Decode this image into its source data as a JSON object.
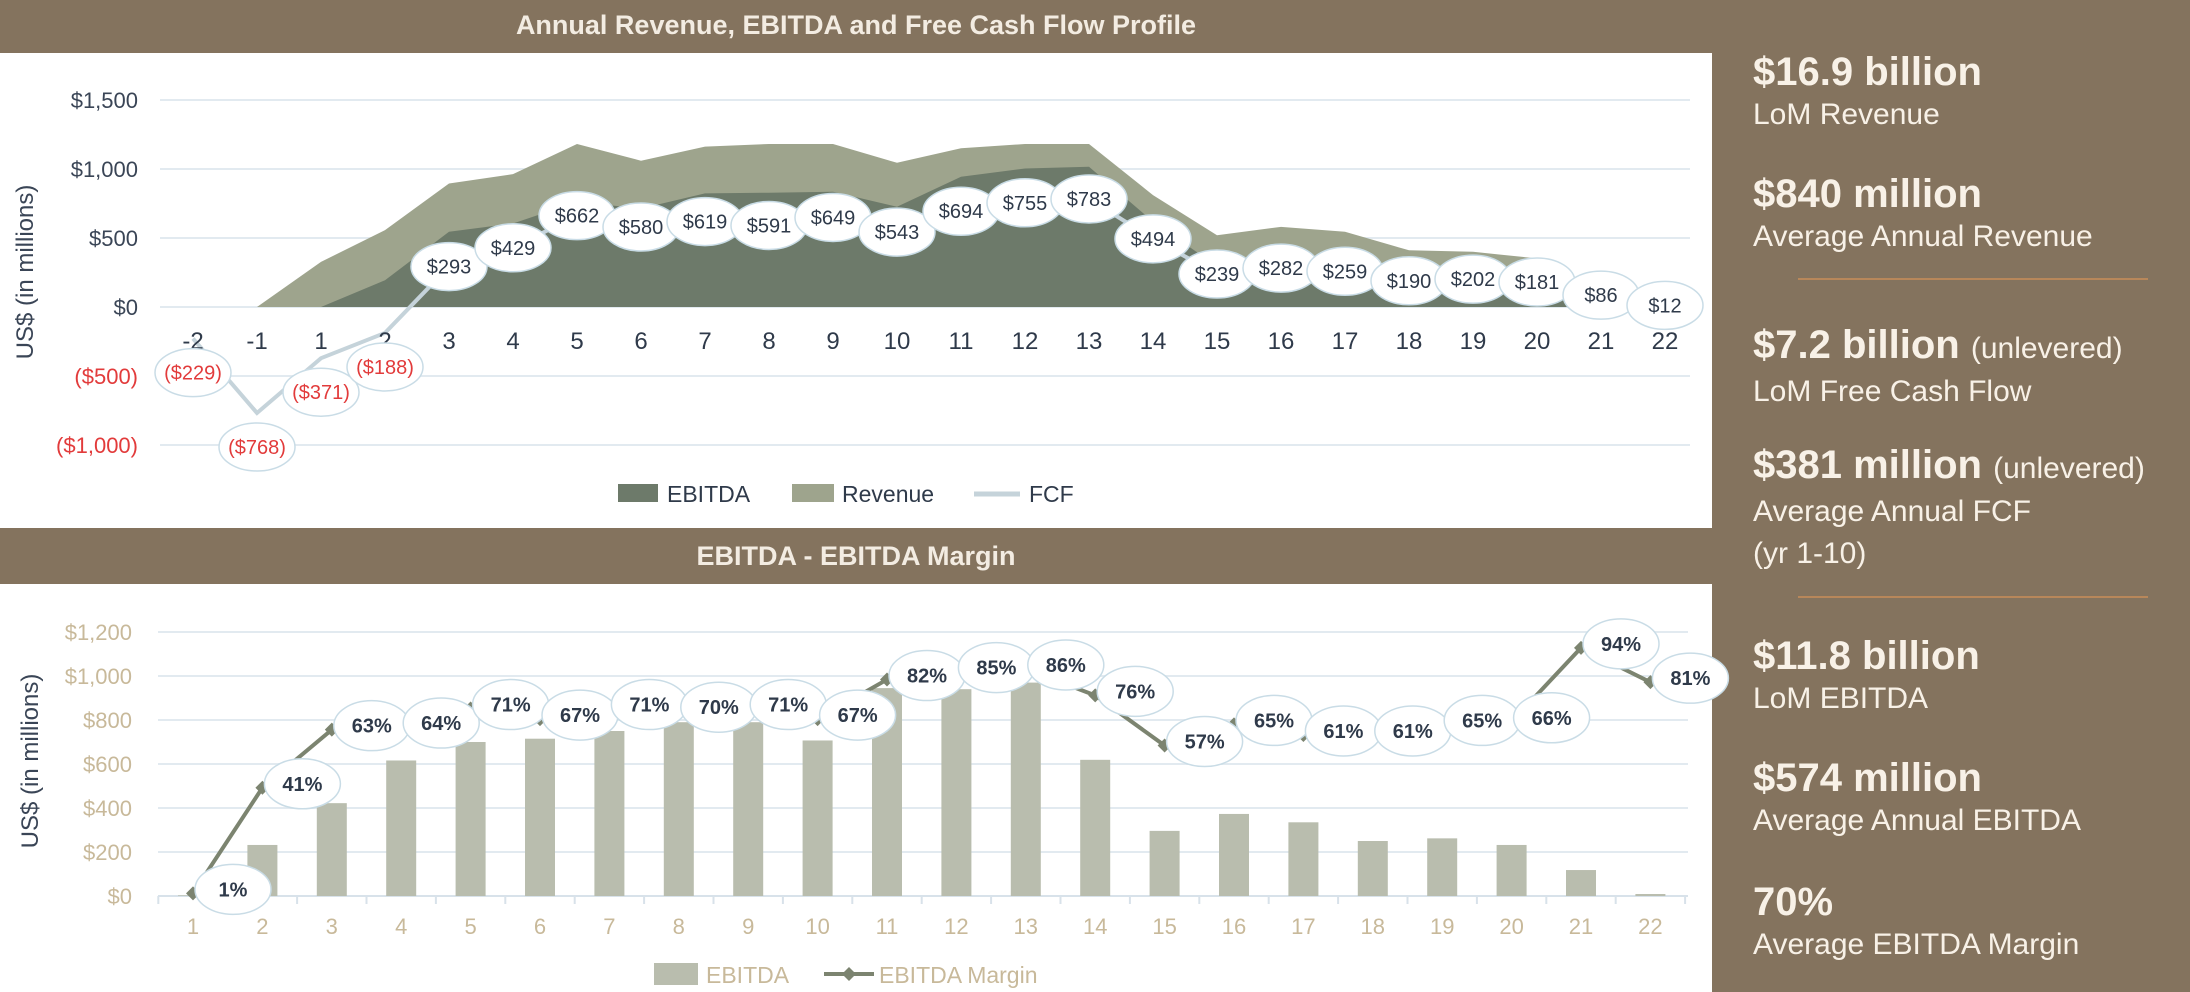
{
  "top_header": {
    "title": "Annual Revenue, EBITDA and Free Cash Flow Profile"
  },
  "bottom_header": {
    "title": "EBITDA  -  EBITDA Margin"
  },
  "colors": {
    "background": "#84735e",
    "revenue": "#9ea48d",
    "ebitda_area": "#6d7a6a",
    "fcf_line": "#c5d3da",
    "ebitda_bar": "#b9bdae",
    "margin_line": "#7c8470",
    "negative_label": "#e23b3b",
    "label_border": "#c9dce6",
    "divider": "#b8875a"
  },
  "chart_data": [
    {
      "type": "area",
      "title": "Annual Revenue, EBITDA and Free Cash Flow Profile",
      "ylabel": "US$ (in millions)",
      "ylim": [
        -1000,
        1500
      ],
      "yticks": [
        1500,
        1000,
        500,
        0,
        -500,
        -1000
      ],
      "ytick_labels": [
        "$1,500",
        "$1,000",
        "$500",
        "$0",
        "($500)",
        "($1,000)"
      ],
      "grid": true,
      "legend_position": "bottom",
      "categories": [
        "-2",
        "-1",
        "1",
        "2",
        "3",
        "4",
        "5",
        "6",
        "7",
        "8",
        "9",
        "10",
        "11",
        "12",
        "13",
        "14",
        "15",
        "16",
        "17",
        "18",
        "19",
        "20",
        "21",
        "22"
      ],
      "series": [
        {
          "name": "EBITDA",
          "kind": "area",
          "values": [
            0,
            0,
            0,
            194,
            545,
            605,
            762,
            714,
            823,
            828,
            835,
            726,
            944,
            1004,
            1016,
            619,
            296,
            373,
            335,
            250,
            262,
            232,
            118,
            9
          ]
        },
        {
          "name": "Revenue",
          "kind": "area",
          "values": [
            0,
            0,
            327,
            557,
            895,
            963,
            1181,
            1060,
            1162,
            1181,
            1181,
            1045,
            1150,
            1181,
            1181,
            811,
            520,
            581,
            545,
            411,
            400,
            352,
            126,
            11
          ]
        },
        {
          "name": "FCF",
          "kind": "line",
          "values": [
            -229,
            -768,
            -371,
            -188,
            293,
            429,
            662,
            580,
            619,
            591,
            649,
            543,
            694,
            755,
            783,
            494,
            239,
            282,
            259,
            190,
            202,
            181,
            86,
            12
          ],
          "labels": [
            "($229)",
            "($768)",
            "($371)",
            "($188)",
            "$293",
            "$429",
            "$662",
            "$580",
            "$619",
            "$591",
            "$649",
            "$543",
            "$694",
            "$755",
            "$783",
            "$494",
            "$239",
            "$282",
            "$259",
            "$190",
            "$202",
            "$181",
            "$86",
            "$12"
          ]
        }
      ]
    },
    {
      "type": "bar",
      "title": "EBITDA  -  EBITDA Margin",
      "ylabel": "US$ (in millions)",
      "ylim": [
        0,
        1200
      ],
      "yticks": [
        0,
        200,
        400,
        600,
        800,
        1000,
        1200
      ],
      "ytick_labels": [
        "$0",
        "$200",
        "$400",
        "$600",
        "$800",
        "$1,000",
        "$1,200"
      ],
      "grid": true,
      "legend_position": "bottom",
      "categories": [
        "1",
        "2",
        "3",
        "4",
        "5",
        "6",
        "7",
        "8",
        "9",
        "10",
        "11",
        "12",
        "13",
        "14",
        "15",
        "16",
        "17",
        "18",
        "19",
        "20",
        "21",
        "22"
      ],
      "series": [
        {
          "name": "EBITDA",
          "kind": "bar",
          "values": [
            3,
            232,
            422,
            616,
            700,
            715,
            750,
            790,
            790,
            707,
            945,
            940,
            970,
            619,
            296,
            373,
            335,
            250,
            262,
            232,
            118,
            9
          ]
        },
        {
          "name": "EBITDA Margin",
          "kind": "line",
          "unit": "%",
          "values": [
            1,
            41,
            63,
            64,
            71,
            67,
            71,
            70,
            71,
            67,
            82,
            85,
            86,
            76,
            57,
            65,
            61,
            61,
            65,
            66,
            94,
            81
          ],
          "labels": [
            "1%",
            "41%",
            "63%",
            "64%",
            "71%",
            "67%",
            "71%",
            "70%",
            "71%",
            "67%",
            "82%",
            "85%",
            "86%",
            "76%",
            "57%",
            "65%",
            "61%",
            "61%",
            "65%",
            "66%",
            "94%",
            "81%"
          ]
        }
      ]
    }
  ],
  "stats": [
    {
      "value": "$16.9 billion",
      "qualifier": "",
      "label": "LoM Revenue",
      "label2": ""
    },
    {
      "value": "$840 million",
      "qualifier": "",
      "label": "Average Annual Revenue",
      "label2": ""
    },
    {
      "value": "$7.2 billion",
      "qualifier": "(unlevered)",
      "label": "LoM Free Cash Flow",
      "label2": ""
    },
    {
      "value": "$381 million",
      "qualifier": "(unlevered)",
      "label": "Average Annual FCF",
      "label2": "(yr 1-10)"
    },
    {
      "value": "$11.8 billion",
      "qualifier": "",
      "label": "LoM EBITDA",
      "label2": ""
    },
    {
      "value": "$574 million",
      "qualifier": "",
      "label": "Average Annual EBITDA",
      "label2": ""
    },
    {
      "value": "70%",
      "qualifier": "",
      "label": "Average EBITDA Margin",
      "label2": ""
    }
  ]
}
